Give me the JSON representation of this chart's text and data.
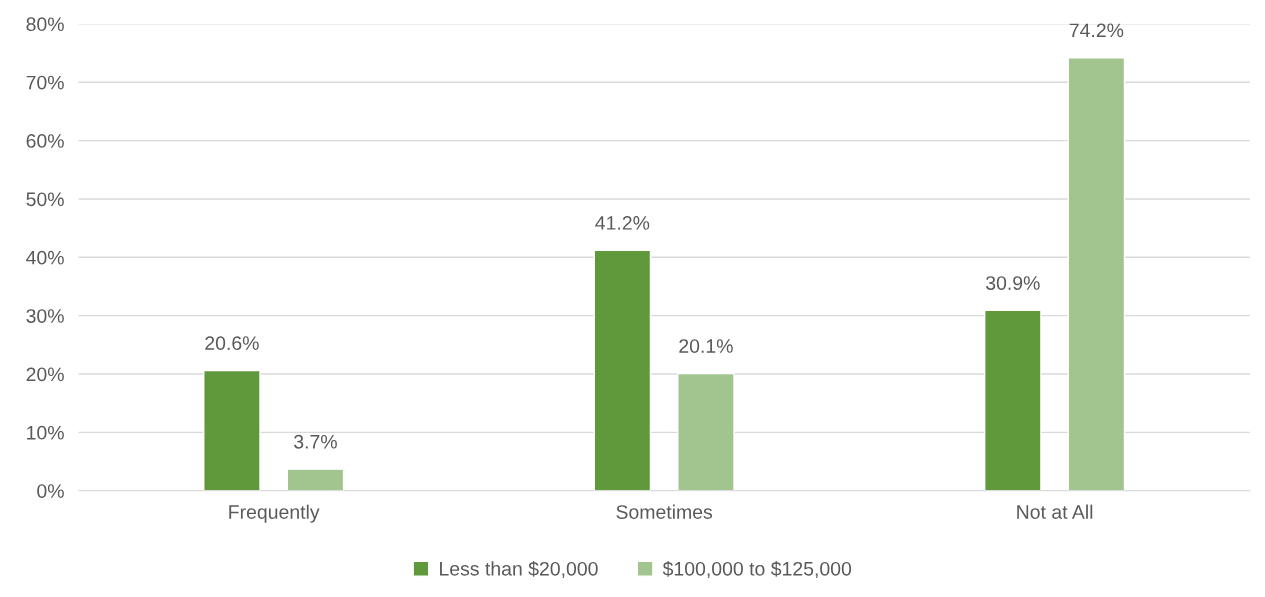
{
  "chart_data": {
    "type": "bar",
    "categories": [
      "Frequently",
      "Sometimes",
      "Not at All"
    ],
    "series": [
      {
        "name": "Less than $20,000",
        "color": "#5f993c",
        "values": [
          20.6,
          41.2,
          30.9
        ],
        "value_labels": [
          "20.6%",
          "41.2%",
          "30.9%"
        ]
      },
      {
        "name": "$100,000 to $125,000",
        "color": "#a2c48f",
        "values": [
          3.7,
          20.1,
          74.2
        ],
        "value_labels": [
          "3.7%",
          "20.1%",
          "74.2%"
        ]
      }
    ],
    "ylim": [
      0,
      80
    ],
    "yticks": [
      {
        "value": 0,
        "label": "0%"
      },
      {
        "value": 10,
        "label": "10%"
      },
      {
        "value": 20,
        "label": "20%"
      },
      {
        "value": 30,
        "label": "30%"
      },
      {
        "value": 40,
        "label": "40%"
      },
      {
        "value": 50,
        "label": "50%"
      },
      {
        "value": 60,
        "label": "60%"
      },
      {
        "value": 70,
        "label": "70%"
      },
      {
        "value": 80,
        "label": "80%"
      }
    ],
    "grid": "y",
    "legend": "bottom"
  }
}
